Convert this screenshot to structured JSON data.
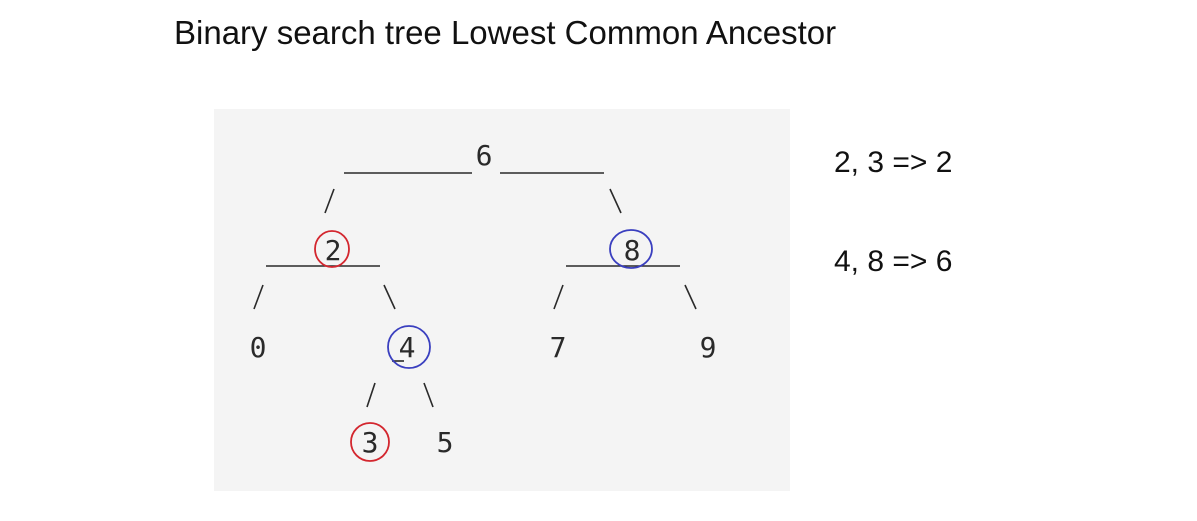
{
  "title": "Binary search tree Lowest Common Ancestor",
  "tree": {
    "root": "6",
    "n2": "2",
    "n8": "8",
    "n0": "0",
    "n4": "4",
    "n7": "7",
    "n9": "9",
    "n3": "3",
    "n5": "5"
  },
  "examples": [
    {
      "text": "2, 3 => 2"
    },
    {
      "text": "4, 8 => 6"
    }
  ],
  "colors": {
    "highlight_pair_1": "#d3262e",
    "highlight_pair_2": "#3a3fbf",
    "panel_background": "#f4f4f4"
  }
}
